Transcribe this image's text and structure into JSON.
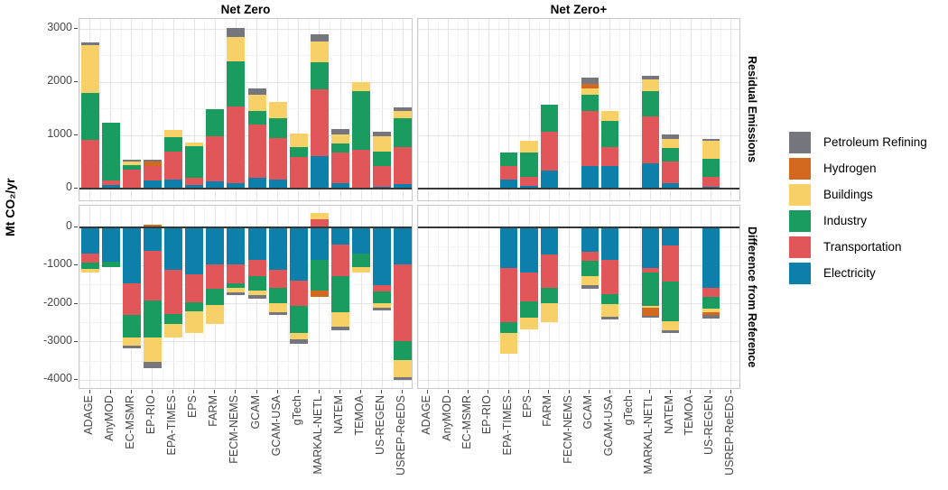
{
  "y_axis_label": "Mt CO₂/yr",
  "facets": {
    "columns": [
      "Net Zero",
      "Net Zero+"
    ],
    "rows": [
      "Residual Emissions",
      "Difference from Reference"
    ]
  },
  "legend": {
    "items": [
      {
        "label": "Petroleum Refining",
        "color": "#76767f"
      },
      {
        "label": "Hydrogen",
        "color": "#d2691e"
      },
      {
        "label": "Buildings",
        "color": "#f7d168"
      },
      {
        "label": "Industry",
        "color": "#1a9c61"
      },
      {
        "label": "Transportation",
        "color": "#e15759"
      },
      {
        "label": "Electricity",
        "color": "#0c7fab"
      }
    ]
  },
  "axes": {
    "top": {
      "ticks": [
        0,
        1000,
        2000,
        3000
      ],
      "minor": [
        500,
        1500,
        2500
      ]
    },
    "bottom": {
      "ticks": [
        0,
        -1000,
        -2000,
        -3000,
        -4000
      ],
      "minor": [
        -500,
        -1500,
        -2500,
        -3500
      ]
    }
  },
  "chart_data": {
    "type": "bar",
    "stacked": true,
    "title": "",
    "xlabel": "",
    "ylabel": "Mt CO2/yr",
    "categories": [
      "ADAGE",
      "AnyMOD",
      "EC-MSMR",
      "EP-RIO",
      "EPA-TIMES",
      "EPS",
      "FARM",
      "FECM-NEMS",
      "GCAM",
      "GCAM-USA",
      "gTech",
      "MARKAL-NETL",
      "NATEM",
      "TEMOA",
      "US-REGEN",
      "USREP-ReEDS"
    ],
    "stack_order": [
      "Electricity",
      "Transportation",
      "Industry",
      "Buildings",
      "Hydrogen",
      "Petroleum Refining"
    ],
    "colors": {
      "Electricity": "#0c7fab",
      "Transportation": "#e15759",
      "Industry": "#1a9c61",
      "Buildings": "#f7d168",
      "Hydrogen": "#d2691e",
      "Petroleum Refining": "#76767f"
    },
    "panels": [
      {
        "column": "Net Zero",
        "row": "Residual Emissions",
        "ylim": [
          0,
          3186
        ],
        "values": [
          [
            0,
            910,
            880,
            900,
            0,
            50
          ],
          [
            70,
            85,
            1085,
            0,
            0,
            0
          ],
          [
            15,
            345,
            75,
            70,
            0,
            35
          ],
          [
            150,
            270,
            0,
            0,
            95,
            30
          ],
          [
            170,
            520,
            280,
            130,
            0,
            0
          ],
          [
            70,
            135,
            590,
            75,
            0,
            0
          ],
          [
            135,
            850,
            515,
            0,
            0,
            0
          ],
          [
            100,
            1440,
            855,
            455,
            0,
            170
          ],
          [
            200,
            1010,
            250,
            300,
            0,
            120
          ],
          [
            170,
            780,
            380,
            290,
            0,
            0
          ],
          [
            0,
            600,
            185,
            255,
            0,
            0
          ],
          [
            610,
            1255,
            510,
            390,
            0,
            125
          ],
          [
            105,
            575,
            170,
            170,
            0,
            100
          ],
          [
            0,
            730,
            1100,
            170,
            0,
            0
          ],
          [
            30,
            390,
            280,
            285,
            0,
            85
          ],
          [
            85,
            695,
            540,
            140,
            0,
            70
          ]
        ]
      },
      {
        "column": "Net Zero+",
        "row": "Residual Emissions",
        "ylim": [
          0,
          3186
        ],
        "values": [
          null,
          null,
          null,
          null,
          [
            170,
            255,
            255,
            0,
            0,
            0
          ],
          [
            50,
            170,
            460,
            220,
            0,
            0
          ],
          [
            340,
            730,
            510,
            0,
            0,
            0
          ],
          null,
          [
            420,
            1040,
            295,
            130,
            75,
            125
          ],
          [
            420,
            365,
            480,
            200,
            0,
            0
          ],
          null,
          [
            475,
            885,
            470,
            220,
            0,
            70
          ],
          [
            100,
            410,
            250,
            170,
            0,
            90
          ],
          null,
          [
            35,
            185,
            340,
            340,
            0,
            35
          ],
          null
        ]
      },
      {
        "column": "Net Zero",
        "row": "Difference from Reference",
        "ylim": [
          -4250,
          570
        ],
        "values": [
          [
            -680,
            -235,
            -180,
            -80,
            0,
            0
          ],
          [
            -890,
            0,
            -140,
            0,
            0,
            0
          ],
          [
            -1470,
            -825,
            -590,
            -210,
            0,
            -80
          ],
          [
            -610,
            -1300,
            -985,
            -630,
            65,
            -160
          ],
          [
            -1100,
            -1180,
            -240,
            -355,
            0,
            0
          ],
          [
            -1220,
            -750,
            -240,
            -550,
            0,
            0
          ],
          [
            -960,
            -655,
            -410,
            -510,
            0,
            0
          ],
          [
            -960,
            -510,
            -120,
            -105,
            0,
            -80
          ],
          [
            -845,
            -435,
            -370,
            -130,
            0,
            -90
          ],
          [
            -1120,
            -470,
            -400,
            -230,
            0,
            -80
          ],
          [
            -1395,
            -670,
            -710,
            -155,
            0,
            -120
          ],
          [
            -850,
            205,
            -800,
            175,
            -180,
            0
          ],
          [
            -450,
            -830,
            -945,
            -380,
            0,
            -95
          ],
          [
            -690,
            0,
            -350,
            -145,
            0,
            0
          ],
          [
            -1510,
            -160,
            -315,
            -120,
            0,
            -80
          ],
          [
            -960,
            -2010,
            -510,
            -435,
            0,
            -80
          ]
        ]
      },
      {
        "column": "Net Zero+",
        "row": "Difference from Reference",
        "ylim": [
          -4250,
          570
        ],
        "values": [
          null,
          null,
          null,
          null,
          [
            -1070,
            -1420,
            -285,
            -545,
            0,
            0
          ],
          [
            -1190,
            -750,
            -430,
            -300,
            0,
            0
          ],
          [
            -715,
            -870,
            -395,
            -510,
            0,
            0
          ],
          null,
          [
            -640,
            -235,
            -395,
            -250,
            0,
            -80
          ],
          [
            -860,
            -880,
            -280,
            -310,
            0,
            -80
          ],
          null,
          [
            -1070,
            -105,
            -880,
            -55,
            -200,
            -60
          ],
          [
            -465,
            -945,
            -1040,
            -235,
            0,
            -80
          ],
          null,
          [
            -1585,
            -235,
            -315,
            -95,
            -60,
            -100
          ],
          null
        ]
      }
    ]
  }
}
